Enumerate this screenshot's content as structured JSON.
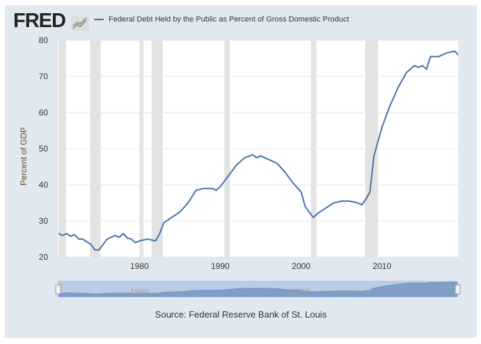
{
  "header": {
    "logo": "FRED",
    "legend": "Federal Debt Held by the Public as Percent of Gross Domestic Product"
  },
  "source": "Source: Federal Reserve Bank of St. Louis",
  "navigator_labels": [
    "1980",
    "2000"
  ],
  "colors": {
    "line": "#4572a7",
    "recession": "#e3e3e3",
    "navigator": "#7f9fc9"
  },
  "chart_data": {
    "type": "line",
    "title": "Federal Debt Held by the Public as Percent of Gross Domestic Product",
    "xlabel": "",
    "ylabel": "Percent of GDP",
    "xlim": [
      1969.9,
      2019.4
    ],
    "ylim": [
      20,
      80
    ],
    "yticks": [
      20,
      30,
      40,
      50,
      60,
      70,
      80
    ],
    "xticks": [
      1980,
      1990,
      2000,
      2010
    ],
    "recessions": [
      [
        1970.0,
        1970.9
      ],
      [
        1973.9,
        1975.2
      ],
      [
        1980.0,
        1980.5
      ],
      [
        1981.5,
        1982.9
      ],
      [
        1990.5,
        1991.2
      ],
      [
        2001.2,
        2001.9
      ],
      [
        2007.9,
        2009.5
      ]
    ],
    "series": [
      {
        "name": "Federal Debt Held by the Public as Percent of Gross Domestic Product",
        "x": [
          1970,
          1970.5,
          1971,
          1971.5,
          1972,
          1972.5,
          1973,
          1974,
          1974.5,
          1975,
          1975.5,
          1976,
          1977,
          1977.5,
          1978,
          1978.5,
          1979,
          1979.5,
          1980,
          1981,
          1982,
          1982.5,
          1983,
          1984,
          1985,
          1986,
          1987,
          1988,
          1989,
          1989.5,
          1990,
          1991,
          1992,
          1993,
          1994,
          1994.5,
          1995,
          1996,
          1997,
          1998,
          1999,
          2000,
          2000.5,
          2001,
          2001.5,
          2002,
          2003,
          2004,
          2005,
          2006,
          2007,
          2007.5,
          2008,
          2008.5,
          2009,
          2009.5,
          2010,
          2011,
          2012,
          2013,
          2014,
          2014.5,
          2015,
          2015.5,
          2016,
          2017,
          2018,
          2019,
          2019.4
        ],
        "values": [
          26.5,
          26,
          26.5,
          25.8,
          26.2,
          25,
          25,
          23.5,
          22,
          22,
          23.5,
          25,
          26,
          25.5,
          26.5,
          25.3,
          25,
          24,
          24.5,
          25,
          24.5,
          26.5,
          29.5,
          31,
          32.5,
          35,
          38.5,
          39,
          39,
          38.5,
          39.5,
          42.5,
          45.5,
          47.5,
          48.3,
          47.5,
          48,
          47,
          46,
          43.5,
          40.5,
          38,
          34,
          32.5,
          31,
          32,
          33.5,
          35,
          35.5,
          35.5,
          35,
          34.5,
          36,
          38,
          48,
          52,
          56,
          62,
          67,
          71,
          73,
          72.5,
          73,
          72,
          75.5,
          75.5,
          76.5,
          77,
          76
        ]
      }
    ]
  }
}
